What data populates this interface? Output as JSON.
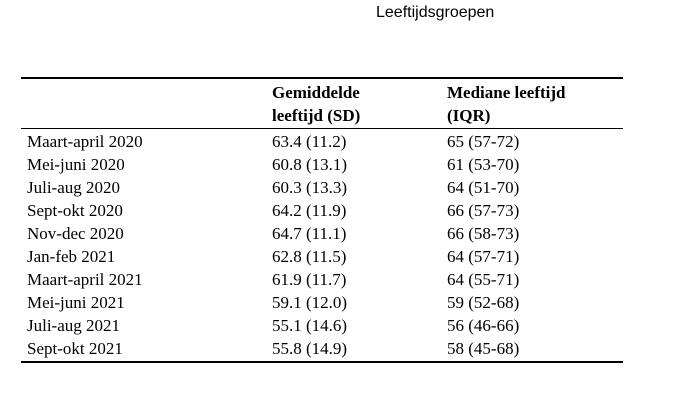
{
  "caption": "Leeftijdsgroepen",
  "table": {
    "headers": [
      "",
      "Gemiddelde leeftijd (SD)",
      "Mediane leeftijd (IQR)"
    ],
    "header_lines": [
      [
        "",
        ""
      ],
      [
        "Gemiddelde",
        "leeftijd (SD)"
      ],
      [
        "Mediane leeftijd",
        "(IQR)"
      ]
    ],
    "rows": [
      [
        "Maart-april 2020",
        "63.4 (11.2)",
        "65 (57-72)"
      ],
      [
        "Mei-juni 2020",
        "60.8 (13.1)",
        "61 (53-70)"
      ],
      [
        "Juli-aug 2020",
        "60.3 (13.3)",
        "64 (51-70)"
      ],
      [
        "Sept-okt 2020",
        "64.2 (11.9)",
        "66 (57-73)"
      ],
      [
        "Nov-dec 2020",
        "64.7 (11.1)",
        "66 (58-73)"
      ],
      [
        "Jan-feb 2021",
        "62.8 (11.5)",
        "64 (57-71)"
      ],
      [
        "Maart-april 2021",
        "61.9 (11.7)",
        "64 (55-71)"
      ],
      [
        "Mei-juni 2021",
        "59.1 (12.0)",
        "59 (52-68)"
      ],
      [
        "Juli-aug 2021",
        "55.1 (14.6)",
        "56 (46-66)"
      ],
      [
        "Sept-okt 2021",
        "55.8 (14.9)",
        "58 (45-68)"
      ]
    ]
  }
}
